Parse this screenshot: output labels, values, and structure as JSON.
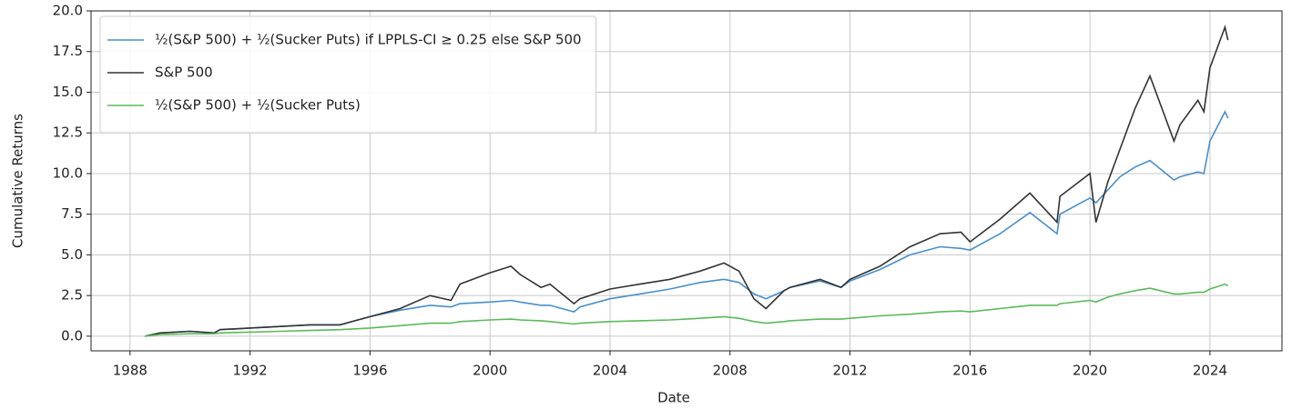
{
  "chart_data": {
    "type": "line",
    "x_label": "Date",
    "y_label": "Cumulative Returns",
    "x": [
      1988.5,
      1989,
      1990,
      1990.8,
      1991,
      1992,
      1993,
      1994,
      1995,
      1996,
      1997,
      1998,
      1998.7,
      1999,
      2000,
      2000.7,
      2001,
      2001.7,
      2002,
      2002.8,
      2003,
      2004,
      2005,
      2006,
      2007,
      2007.8,
      2008.3,
      2008.8,
      2009.2,
      2009.8,
      2010,
      2011,
      2011.7,
      2012,
      2013,
      2014,
      2015,
      2015.7,
      2016,
      2017,
      2018,
      2018.9,
      2019,
      2020,
      2020.2,
      2020.6,
      2021,
      2021.5,
      2022,
      2022.8,
      2023,
      2023.6,
      2023.8,
      2024,
      2024.5,
      2024.6
    ],
    "series": [
      {
        "name": "½(S&P 500) + ½(Sucker Puts) if LPPLS-CI ≥ 0.25 else S&P 500",
        "color": "#4a8fc8",
        "values": [
          0,
          0.2,
          0.3,
          0.2,
          0.4,
          0.5,
          0.6,
          0.7,
          0.7,
          1.2,
          1.6,
          1.9,
          1.8,
          2.0,
          2.1,
          2.2,
          2.1,
          1.9,
          1.9,
          1.5,
          1.8,
          2.3,
          2.6,
          2.9,
          3.3,
          3.5,
          3.3,
          2.6,
          2.3,
          2.8,
          3.0,
          3.4,
          3.0,
          3.4,
          4.1,
          5.0,
          5.5,
          5.4,
          5.3,
          6.3,
          7.6,
          6.3,
          7.5,
          8.5,
          8.2,
          9.0,
          9.8,
          10.4,
          10.8,
          9.6,
          9.8,
          10.1,
          10.0,
          12.0,
          13.8,
          13.4
        ]
      },
      {
        "name": "S&P 500",
        "color": "#333333",
        "values": [
          0,
          0.2,
          0.3,
          0.2,
          0.4,
          0.5,
          0.6,
          0.7,
          0.7,
          1.2,
          1.7,
          2.5,
          2.2,
          3.2,
          3.9,
          4.3,
          3.8,
          3.0,
          3.2,
          2.0,
          2.3,
          2.9,
          3.2,
          3.5,
          4.0,
          4.5,
          4.0,
          2.3,
          1.7,
          2.8,
          3.0,
          3.5,
          3.0,
          3.5,
          4.3,
          5.5,
          6.3,
          6.4,
          5.8,
          7.2,
          8.8,
          7.0,
          8.6,
          10.0,
          7.0,
          9.5,
          11.5,
          14,
          16.0,
          12.0,
          13.0,
          14.5,
          13.8,
          16.5,
          19.0,
          18.2
        ]
      },
      {
        "name": "½(S&P 500) + ½(Sucker Puts)",
        "color": "#5cb85c",
        "values": [
          0,
          0.1,
          0.15,
          0.15,
          0.2,
          0.25,
          0.3,
          0.35,
          0.4,
          0.5,
          0.65,
          0.8,
          0.8,
          0.9,
          1.0,
          1.05,
          1.0,
          0.95,
          0.9,
          0.75,
          0.8,
          0.9,
          0.95,
          1.0,
          1.1,
          1.2,
          1.1,
          0.9,
          0.8,
          0.9,
          0.95,
          1.05,
          1.05,
          1.1,
          1.25,
          1.35,
          1.5,
          1.55,
          1.5,
          1.7,
          1.9,
          1.9,
          2.0,
          2.2,
          2.1,
          2.4,
          2.6,
          2.8,
          2.95,
          2.6,
          2.6,
          2.7,
          2.7,
          2.9,
          3.2,
          3.1
        ]
      }
    ],
    "xlim": [
      1986.7,
      2026.4
    ],
    "ylim": [
      -0.9,
      20.0
    ],
    "xticks": [
      1988,
      1992,
      1996,
      2000,
      2004,
      2008,
      2012,
      2016,
      2020,
      2024
    ],
    "yticks": [
      {
        "value": 0,
        "label": "0.0"
      },
      2.5,
      {
        "value": 5,
        "label": "5.0"
      },
      7.5,
      {
        "value": 10,
        "label": "10.0"
      },
      12.5,
      {
        "value": 15,
        "label": "15.0"
      },
      17.5,
      {
        "value": 20,
        "label": "20.0"
      }
    ],
    "grid": true,
    "legend": "upper left"
  }
}
